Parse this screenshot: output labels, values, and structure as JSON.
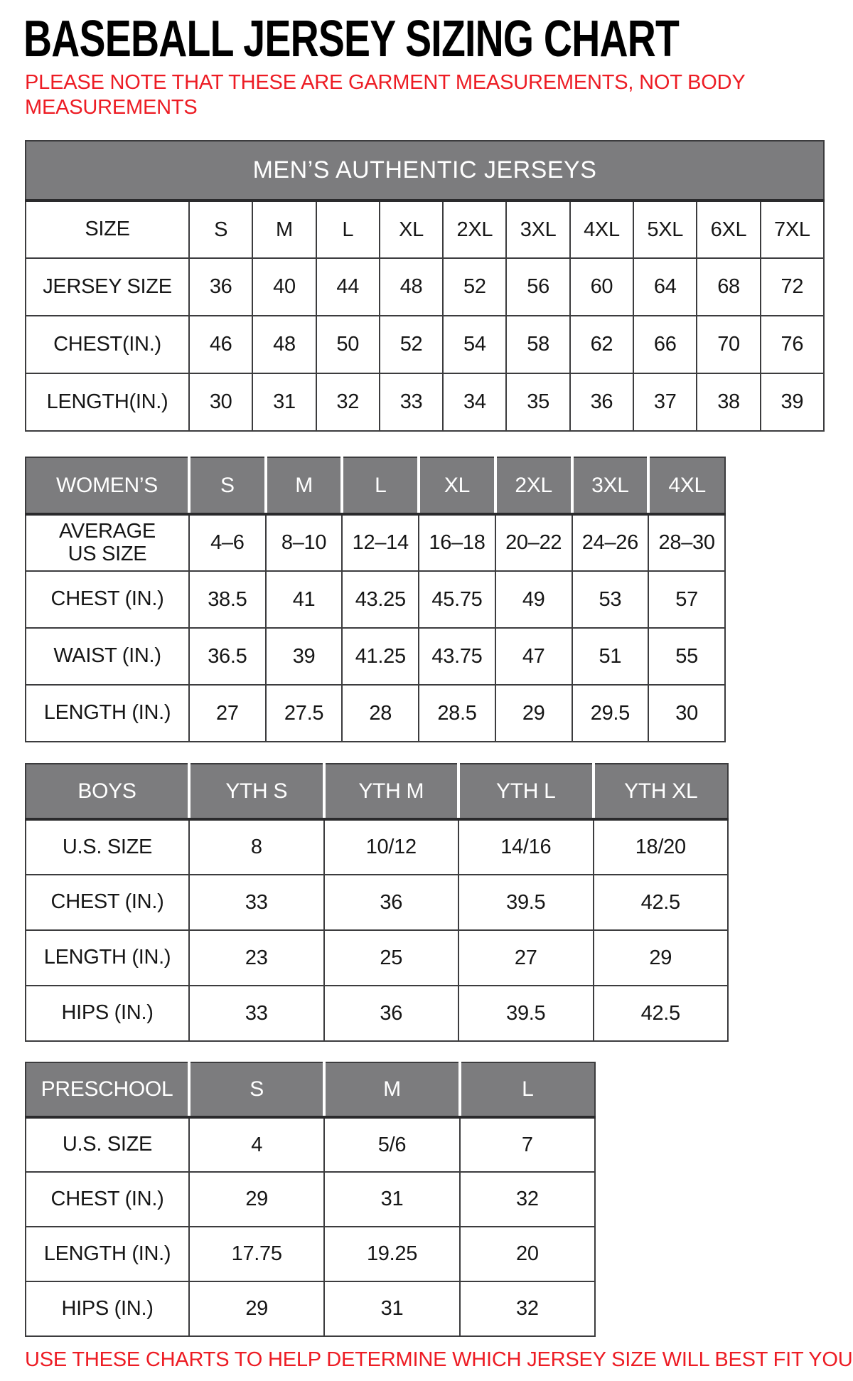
{
  "page": {
    "title": "BASEBALL JERSEY SIZING CHART",
    "note": "PLEASE NOTE THAT THESE ARE GARMENT MEASUREMENTS, NOT BODY MEASUREMENTS",
    "footer": "USE THESE CHARTS TO HELP DETERMINE WHICH JERSEY SIZE WILL BEST FIT YOU."
  },
  "colors": {
    "accent_red": "#ed1c24",
    "header_gray": "#7c7c7e",
    "border_dark": "#3c3c3e",
    "text_ink": "#161616"
  },
  "tables": [
    {
      "id": "mens",
      "banner": "MEN’S AUTHENTIC JERSEYS",
      "header": null,
      "rows": [
        {
          "label": "SIZE",
          "values": [
            "S",
            "M",
            "L",
            "XL",
            "2XL",
            "3XL",
            "4XL",
            "5XL",
            "6XL",
            "7XL"
          ]
        },
        {
          "label": "JERSEY SIZE",
          "values": [
            "36",
            "40",
            "44",
            "48",
            "52",
            "56",
            "60",
            "64",
            "68",
            "72"
          ]
        },
        {
          "label": "CHEST(IN.)",
          "values": [
            "46",
            "48",
            "50",
            "52",
            "54",
            "58",
            "62",
            "66",
            "70",
            "76"
          ]
        },
        {
          "label": "LENGTH(IN.)",
          "values": [
            "30",
            "31",
            "32",
            "33",
            "34",
            "35",
            "36",
            "37",
            "38",
            "39"
          ]
        }
      ]
    },
    {
      "id": "womens",
      "banner": null,
      "header": {
        "label": "WOMEN’S",
        "cells": [
          "S",
          "M",
          "L",
          "XL",
          "2XL",
          "3XL",
          "4XL"
        ]
      },
      "rows": [
        {
          "label": "AVERAGE\nUS SIZE",
          "values": [
            "4–6",
            "8–10",
            "12–14",
            "16–18",
            "20–22",
            "24–26",
            "28–30"
          ]
        },
        {
          "label": "CHEST (IN.)",
          "values": [
            "38.5",
            "41",
            "43.25",
            "45.75",
            "49",
            "53",
            "57"
          ]
        },
        {
          "label": "WAIST (IN.)",
          "values": [
            "36.5",
            "39",
            "41.25",
            "43.75",
            "47",
            "51",
            "55"
          ]
        },
        {
          "label": "LENGTH (IN.)",
          "values": [
            "27",
            "27.5",
            "28",
            "28.5",
            "29",
            "29.5",
            "30"
          ]
        }
      ]
    },
    {
      "id": "boys",
      "banner": null,
      "header": {
        "label": "BOYS",
        "cells": [
          "YTH S",
          "YTH M",
          "YTH L",
          "YTH XL"
        ]
      },
      "rows": [
        {
          "label": "U.S. SIZE",
          "values": [
            "8",
            "10/12",
            "14/16",
            "18/20"
          ]
        },
        {
          "label": "CHEST (IN.)",
          "values": [
            "33",
            "36",
            "39.5",
            "42.5"
          ]
        },
        {
          "label": "LENGTH (IN.)",
          "values": [
            "23",
            "25",
            "27",
            "29"
          ]
        },
        {
          "label": "HIPS (IN.)",
          "values": [
            "33",
            "36",
            "39.5",
            "42.5"
          ]
        }
      ]
    },
    {
      "id": "preschool",
      "banner": null,
      "header": {
        "label": "PRESCHOOL",
        "cells": [
          "S",
          "M",
          "L"
        ]
      },
      "rows": [
        {
          "label": "U.S. SIZE",
          "values": [
            "4",
            "5/6",
            "7"
          ]
        },
        {
          "label": "CHEST (IN.)",
          "values": [
            "29",
            "31",
            "32"
          ]
        },
        {
          "label": "LENGTH (IN.)",
          "values": [
            "17.75",
            "19.25",
            "20"
          ]
        },
        {
          "label": "HIPS (IN.)",
          "values": [
            "29",
            "31",
            "32"
          ]
        }
      ]
    }
  ]
}
